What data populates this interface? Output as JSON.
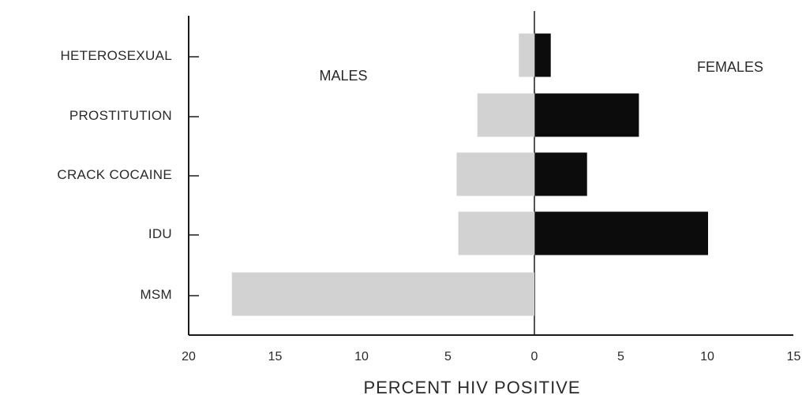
{
  "chart_data": {
    "type": "bar",
    "orientation": "horizontal",
    "layout": "back-to-back",
    "categories": [
      "HETEROSEXUAL",
      "PROSTITUTION",
      "CRACK COCAINE",
      "IDU",
      "MSM"
    ],
    "series": [
      {
        "name": "MALES",
        "side": "left",
        "color": "#d2d2d2",
        "values": [
          0.9,
          3.3,
          4.5,
          4.4,
          17.5
        ]
      },
      {
        "name": "FEMALES",
        "side": "right",
        "color": "#0c0c0c",
        "values": [
          0.9,
          6.0,
          3.0,
          10.0,
          0.0
        ]
      }
    ],
    "xlabel": "PERCENT HIV POSITIVE",
    "xlim": [
      -20,
      15
    ],
    "x_tick_labels": [
      "20",
      "15",
      "10",
      "5",
      "0",
      "5",
      "10",
      "15"
    ],
    "x_tick_values": [
      -20,
      -15,
      -10,
      -5,
      0,
      5,
      10,
      15
    ],
    "grid": false,
    "legend": "none"
  }
}
